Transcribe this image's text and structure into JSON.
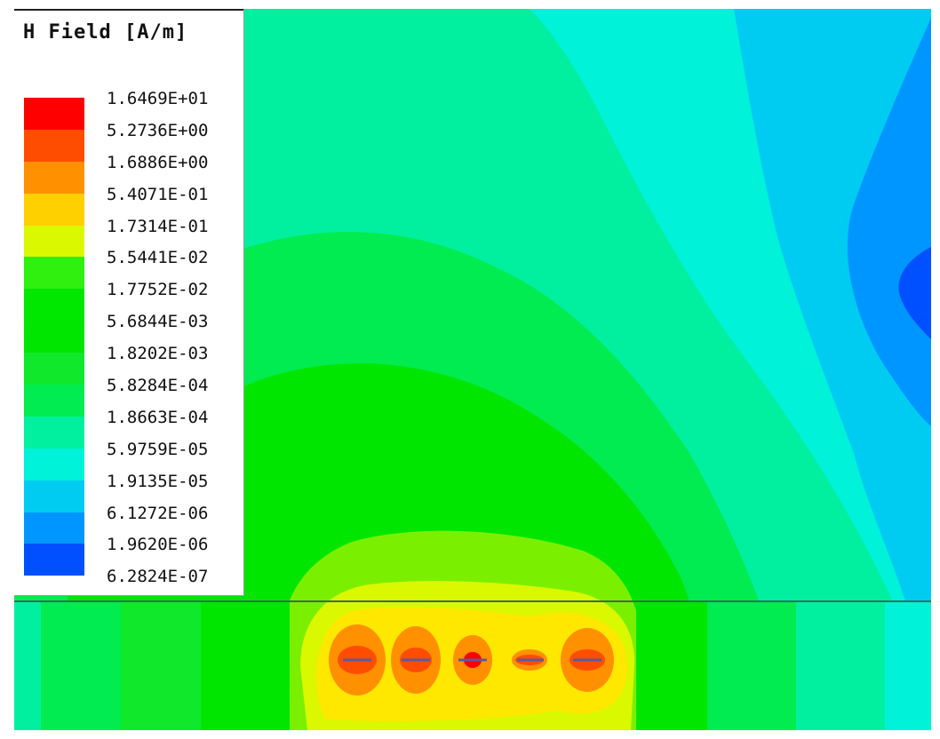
{
  "chart_data": {
    "type": "heatmap",
    "title": "H Field [A/m]",
    "scale": "log",
    "legend": {
      "placement": "top-left",
      "levels": [
        {
          "value": "1.6469E+01",
          "color": "#ff0000"
        },
        {
          "value": "5.2736E+00",
          "color": "#ff4d00"
        },
        {
          "value": "1.6886E+00",
          "color": "#ff9000"
        },
        {
          "value": "5.4071E-01",
          "color": "#ffd000"
        },
        {
          "value": "1.7314E-01",
          "color": "#daf800"
        },
        {
          "value": "5.5441E-02",
          "color": "#30f010"
        },
        {
          "value": "1.7752E-02",
          "color": "#00e800"
        },
        {
          "value": "5.6844E-03",
          "color": "#00e600"
        },
        {
          "value": "1.8202E-03",
          "color": "#10e82c"
        },
        {
          "value": "5.8284E-04",
          "color": "#00ec50"
        },
        {
          "value": "1.8663E-04",
          "color": "#00f0a0"
        },
        {
          "value": "5.9759E-05",
          "color": "#00f2d8"
        },
        {
          "value": "1.9135E-05",
          "color": "#00ccf2"
        },
        {
          "value": "6.1272E-06",
          "color": "#0096ff"
        },
        {
          "value": "1.9620E-06",
          "color": "#0050ff"
        },
        {
          "value": "6.2824E-07",
          "color": "#0018ff"
        }
      ]
    }
  }
}
